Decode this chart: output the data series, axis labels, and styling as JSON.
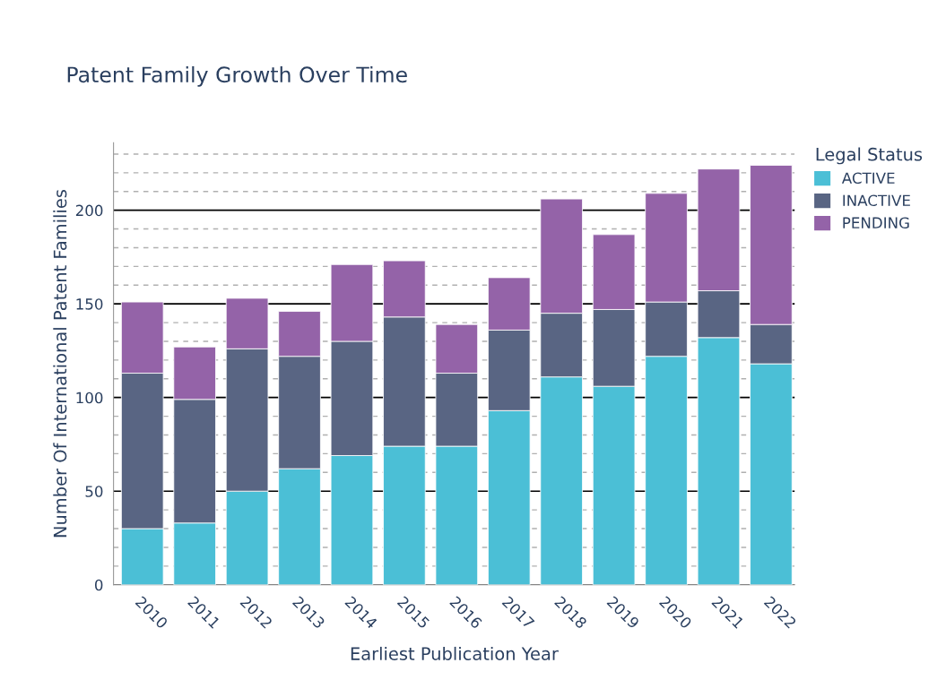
{
  "chart_data": {
    "type": "bar",
    "stacked": true,
    "title": "Patent Family Growth Over Time",
    "xlabel": "Earliest Publication Year",
    "ylabel": "Number Of International Patent Families",
    "legend_title": "Legal Status",
    "categories": [
      "2010",
      "2011",
      "2012",
      "2013",
      "2014",
      "2015",
      "2016",
      "2017",
      "2018",
      "2019",
      "2020",
      "2021",
      "2022"
    ],
    "series": [
      {
        "name": "ACTIVE",
        "color": "#4bbfd6",
        "values": [
          30,
          33,
          50,
          62,
          69,
          74,
          74,
          93,
          111,
          106,
          122,
          132,
          118
        ]
      },
      {
        "name": "INACTIVE",
        "color": "#596583",
        "values": [
          83,
          66,
          76,
          60,
          61,
          69,
          39,
          43,
          34,
          41,
          29,
          25,
          21
        ]
      },
      {
        "name": "PENDING",
        "color": "#9463a8",
        "values": [
          38,
          28,
          27,
          24,
          41,
          30,
          26,
          28,
          61,
          40,
          58,
          65,
          85
        ]
      }
    ],
    "ylim": [
      0,
      236
    ],
    "yticks": [
      0,
      50,
      100,
      150,
      200
    ],
    "grid": "y",
    "legend": "top right"
  }
}
